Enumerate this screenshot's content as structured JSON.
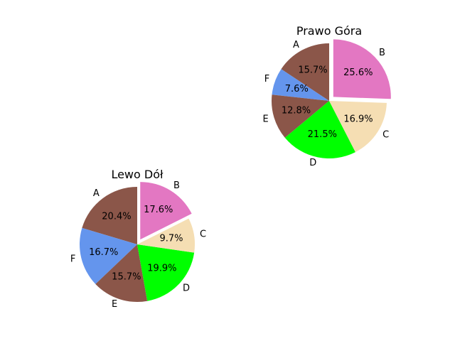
{
  "chart_data": [
    {
      "type": "pie",
      "title": "Prawo Góra",
      "categories": [
        "A",
        "F",
        "E",
        "D",
        "C",
        "B"
      ],
      "values": [
        15.7,
        7.6,
        12.8,
        21.5,
        16.9,
        25.6
      ],
      "value_labels": [
        "15.7%",
        "7.6%",
        "12.8%",
        "21.5%",
        "16.9%",
        "25.6%"
      ],
      "colors": [
        "#8B5649",
        "#6495ED",
        "#8B5649",
        "#00FF00",
        "#F5DEB3",
        "#E377C2"
      ],
      "exploded": [
        "B"
      ]
    },
    {
      "type": "pie",
      "title": "Lewo Dół",
      "categories": [
        "A",
        "F",
        "E",
        "D",
        "C",
        "B"
      ],
      "values": [
        20.4,
        16.7,
        15.7,
        19.9,
        9.7,
        17.6
      ],
      "value_labels": [
        "20.4%",
        "16.7%",
        "15.7%",
        "19.9%",
        "9.7%",
        "17.6%"
      ],
      "colors": [
        "#8B5649",
        "#6495ED",
        "#8B5649",
        "#00FF00",
        "#F5DEB3",
        "#E377C2"
      ],
      "exploded": [
        "B"
      ]
    }
  ]
}
